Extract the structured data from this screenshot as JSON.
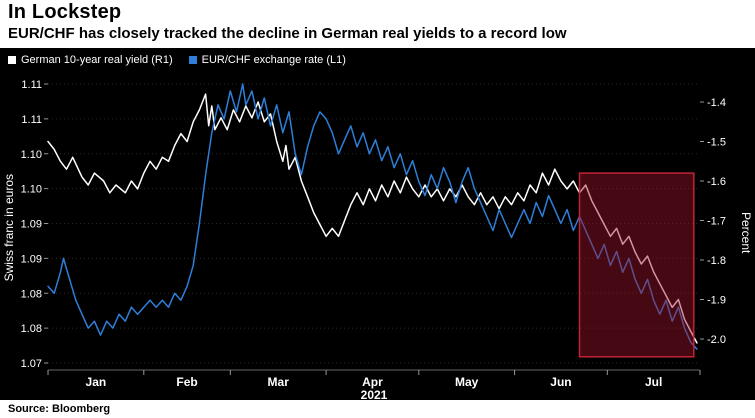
{
  "header": {
    "title": "In Lockstep",
    "subtitle": "EUR/CHF has closely tracked the decline in German real yields to a record low"
  },
  "footer": {
    "source": "Source: Bloomberg"
  },
  "colors": {
    "page_background": "#ffffff",
    "panel_background": "#000000",
    "grid": "#2b2b2b",
    "axis_text": "#ffffff",
    "yield_line": "#ffffff",
    "eurchf_line": "#2e7fd9",
    "highlight_fill": "rgba(155,20,45,0.45)",
    "highlight_border": "#c22334"
  },
  "chart_data": {
    "type": "line",
    "title": "In Lockstep",
    "subtitle": "EUR/CHF has closely tracked the decline in German real yields to a record low",
    "legend": [
      {
        "name": "German 10-year real yield  (R1)",
        "color": "#ffffff",
        "axis": "right"
      },
      {
        "name": "EUR/CHF exchange rate (L1)",
        "color": "#2e7fd9",
        "axis": "left"
      }
    ],
    "x_axis": {
      "year_label": "2021",
      "months": [
        "Jan",
        "Feb",
        "Mar",
        "Apr",
        "May",
        "Jun",
        "Jul"
      ],
      "month_boundaries_days": [
        0,
        31,
        59,
        90,
        120,
        151,
        181,
        211
      ]
    },
    "left_axis": {
      "title": "Swiss franc in euros",
      "ticks": [
        {
          "label": "1.11",
          "value": 1.11
        },
        {
          "label": "1.11",
          "value": 1.105
        },
        {
          "label": "1.10",
          "value": 1.1
        },
        {
          "label": "1.10",
          "value": 1.095
        },
        {
          "label": "1.09",
          "value": 1.09
        },
        {
          "label": "1.09",
          "value": 1.085
        },
        {
          "label": "1.08",
          "value": 1.08
        },
        {
          "label": "1.08",
          "value": 1.075
        },
        {
          "label": "1.07",
          "value": 1.07
        }
      ]
    },
    "right_axis": {
      "title": "Percent",
      "ticks": [
        {
          "label": "-1.4",
          "value": -1.4
        },
        {
          "label": "-1.5",
          "value": -1.5
        },
        {
          "label": "-1.6",
          "value": -1.6
        },
        {
          "label": "-1.7",
          "value": -1.7
        },
        {
          "label": "-1.8",
          "value": -1.8
        },
        {
          "label": "-1.9",
          "value": -1.9
        },
        {
          "label": "-2.0",
          "value": -2.0
        }
      ]
    },
    "highlight_region": {
      "start_day": 172,
      "end_day": 209,
      "top_value_right_axis": -1.58,
      "bottom_value_right_axis": -2.045
    },
    "series": [
      {
        "name": "German 10-year real yield (R1)",
        "axis": "right",
        "color": "#ffffff",
        "points": [
          [
            0,
            -1.5
          ],
          [
            2,
            -1.52
          ],
          [
            4,
            -1.55
          ],
          [
            6,
            -1.57
          ],
          [
            8,
            -1.54
          ],
          [
            11,
            -1.59
          ],
          [
            13,
            -1.61
          ],
          [
            15,
            -1.58
          ],
          [
            18,
            -1.6
          ],
          [
            20,
            -1.63
          ],
          [
            22,
            -1.61
          ],
          [
            25,
            -1.63
          ],
          [
            27,
            -1.6
          ],
          [
            29,
            -1.62
          ],
          [
            31,
            -1.58
          ],
          [
            33,
            -1.55
          ],
          [
            35,
            -1.57
          ],
          [
            37,
            -1.54
          ],
          [
            39,
            -1.55
          ],
          [
            41,
            -1.51
          ],
          [
            43,
            -1.48
          ],
          [
            45,
            -1.5
          ],
          [
            47,
            -1.45
          ],
          [
            49,
            -1.42
          ],
          [
            51,
            -1.38
          ],
          [
            52,
            -1.46
          ],
          [
            53,
            -1.41
          ],
          [
            54,
            -1.47
          ],
          [
            56,
            -1.44
          ],
          [
            58,
            -1.47
          ],
          [
            60,
            -1.42
          ],
          [
            62,
            -1.45
          ],
          [
            64,
            -1.41
          ],
          [
            66,
            -1.44
          ],
          [
            68,
            -1.4
          ],
          [
            70,
            -1.45
          ],
          [
            72,
            -1.43
          ],
          [
            74,
            -1.5
          ],
          [
            76,
            -1.55
          ],
          [
            77,
            -1.51
          ],
          [
            78,
            -1.57
          ],
          [
            80,
            -1.54
          ],
          [
            82,
            -1.6
          ],
          [
            84,
            -1.64
          ],
          [
            86,
            -1.68
          ],
          [
            88,
            -1.71
          ],
          [
            90,
            -1.74
          ],
          [
            92,
            -1.72
          ],
          [
            94,
            -1.74
          ],
          [
            96,
            -1.7
          ],
          [
            98,
            -1.66
          ],
          [
            100,
            -1.63
          ],
          [
            102,
            -1.66
          ],
          [
            104,
            -1.62
          ],
          [
            106,
            -1.65
          ],
          [
            108,
            -1.61
          ],
          [
            110,
            -1.64
          ],
          [
            112,
            -1.6
          ],
          [
            114,
            -1.63
          ],
          [
            116,
            -1.59
          ],
          [
            118,
            -1.62
          ],
          [
            120,
            -1.64
          ],
          [
            122,
            -1.61
          ],
          [
            124,
            -1.64
          ],
          [
            126,
            -1.62
          ],
          [
            128,
            -1.65
          ],
          [
            130,
            -1.62
          ],
          [
            132,
            -1.64
          ],
          [
            134,
            -1.61
          ],
          [
            136,
            -1.64
          ],
          [
            138,
            -1.66
          ],
          [
            140,
            -1.63
          ],
          [
            142,
            -1.66
          ],
          [
            144,
            -1.64
          ],
          [
            146,
            -1.67
          ],
          [
            148,
            -1.64
          ],
          [
            150,
            -1.66
          ],
          [
            152,
            -1.63
          ],
          [
            154,
            -1.65
          ],
          [
            156,
            -1.61
          ],
          [
            158,
            -1.63
          ],
          [
            160,
            -1.58
          ],
          [
            162,
            -1.61
          ],
          [
            164,
            -1.57
          ],
          [
            166,
            -1.6
          ],
          [
            168,
            -1.62
          ],
          [
            170,
            -1.6
          ],
          [
            172,
            -1.63
          ],
          [
            174,
            -1.61
          ],
          [
            176,
            -1.65
          ],
          [
            178,
            -1.68
          ],
          [
            180,
            -1.71
          ],
          [
            182,
            -1.74
          ],
          [
            184,
            -1.72
          ],
          [
            186,
            -1.76
          ],
          [
            188,
            -1.74
          ],
          [
            190,
            -1.78
          ],
          [
            192,
            -1.81
          ],
          [
            194,
            -1.79
          ],
          [
            196,
            -1.83
          ],
          [
            198,
            -1.86
          ],
          [
            200,
            -1.89
          ],
          [
            202,
            -1.92
          ],
          [
            204,
            -1.9
          ],
          [
            206,
            -1.95
          ],
          [
            208,
            -1.98
          ],
          [
            210,
            -2.01
          ]
        ]
      },
      {
        "name": "EUR/CHF exchange rate (L1)",
        "axis": "left",
        "color": "#2e7fd9",
        "points": [
          [
            0,
            1.081
          ],
          [
            2,
            1.08
          ],
          [
            4,
            1.083
          ],
          [
            5,
            1.085
          ],
          [
            7,
            1.082
          ],
          [
            9,
            1.079
          ],
          [
            11,
            1.077
          ],
          [
            13,
            1.075
          ],
          [
            15,
            1.076
          ],
          [
            17,
            1.074
          ],
          [
            19,
            1.076
          ],
          [
            21,
            1.075
          ],
          [
            23,
            1.077
          ],
          [
            25,
            1.076
          ],
          [
            27,
            1.078
          ],
          [
            29,
            1.077
          ],
          [
            31,
            1.078
          ],
          [
            33,
            1.079
          ],
          [
            35,
            1.078
          ],
          [
            37,
            1.079
          ],
          [
            39,
            1.078
          ],
          [
            41,
            1.08
          ],
          [
            43,
            1.079
          ],
          [
            45,
            1.081
          ],
          [
            47,
            1.084
          ],
          [
            49,
            1.09
          ],
          [
            51,
            1.097
          ],
          [
            53,
            1.103
          ],
          [
            55,
            1.107
          ],
          [
            57,
            1.105
          ],
          [
            59,
            1.109
          ],
          [
            61,
            1.106
          ],
          [
            63,
            1.11
          ],
          [
            64,
            1.107
          ],
          [
            66,
            1.109
          ],
          [
            68,
            1.105
          ],
          [
            70,
            1.108
          ],
          [
            72,
            1.104
          ],
          [
            74,
            1.107
          ],
          [
            76,
            1.103
          ],
          [
            78,
            1.106
          ],
          [
            80,
            1.1
          ],
          [
            82,
            1.097
          ],
          [
            84,
            1.101
          ],
          [
            86,
            1.104
          ],
          [
            88,
            1.106
          ],
          [
            90,
            1.105
          ],
          [
            92,
            1.103
          ],
          [
            94,
            1.1
          ],
          [
            96,
            1.102
          ],
          [
            98,
            1.104
          ],
          [
            100,
            1.101
          ],
          [
            102,
            1.103
          ],
          [
            104,
            1.1
          ],
          [
            106,
            1.102
          ],
          [
            108,
            1.099
          ],
          [
            110,
            1.101
          ],
          [
            112,
            1.098
          ],
          [
            114,
            1.1
          ],
          [
            116,
            1.097
          ],
          [
            118,
            1.099
          ],
          [
            120,
            1.096
          ],
          [
            122,
            1.094
          ],
          [
            124,
            1.097
          ],
          [
            126,
            1.095
          ],
          [
            128,
            1.098
          ],
          [
            130,
            1.096
          ],
          [
            132,
            1.093
          ],
          [
            134,
            1.096
          ],
          [
            136,
            1.098
          ],
          [
            138,
            1.095
          ],
          [
            140,
            1.093
          ],
          [
            142,
            1.091
          ],
          [
            144,
            1.089
          ],
          [
            146,
            1.092
          ],
          [
            148,
            1.09
          ],
          [
            150,
            1.088
          ],
          [
            152,
            1.09
          ],
          [
            154,
            1.092
          ],
          [
            156,
            1.09
          ],
          [
            158,
            1.093
          ],
          [
            160,
            1.091
          ],
          [
            162,
            1.094
          ],
          [
            164,
            1.092
          ],
          [
            166,
            1.09
          ],
          [
            168,
            1.092
          ],
          [
            170,
            1.089
          ],
          [
            172,
            1.091
          ],
          [
            174,
            1.089
          ],
          [
            176,
            1.087
          ],
          [
            178,
            1.085
          ],
          [
            180,
            1.087
          ],
          [
            182,
            1.084
          ],
          [
            184,
            1.086
          ],
          [
            186,
            1.083
          ],
          [
            188,
            1.085
          ],
          [
            190,
            1.082
          ],
          [
            192,
            1.08
          ],
          [
            194,
            1.082
          ],
          [
            196,
            1.079
          ],
          [
            198,
            1.077
          ],
          [
            200,
            1.079
          ],
          [
            202,
            1.076
          ],
          [
            204,
            1.078
          ],
          [
            206,
            1.075
          ],
          [
            208,
            1.073
          ],
          [
            210,
            1.072
          ]
        ]
      }
    ]
  }
}
